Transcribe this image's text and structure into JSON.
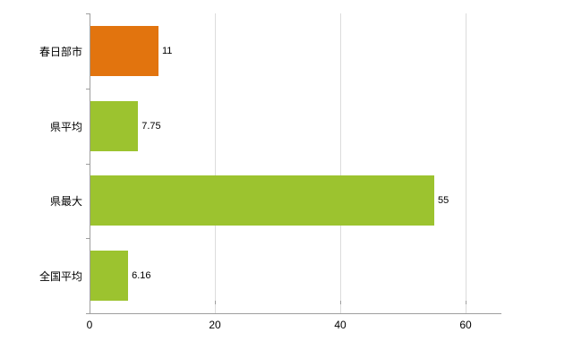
{
  "chart_data": {
    "type": "bar",
    "orientation": "horizontal",
    "title": "",
    "xlabel": "",
    "ylabel": "",
    "categories": [
      "春日部市",
      "県平均",
      "県最大",
      "全国平均"
    ],
    "values": [
      11,
      7.75,
      55,
      6.16
    ],
    "value_labels": [
      "11",
      "7.75",
      "55",
      "6.16"
    ],
    "bar_colors": [
      "#e2740e",
      "#9cc32f",
      "#9cc32f",
      "#9cc32f"
    ],
    "x_ticks": [
      0,
      20,
      40,
      60
    ],
    "x_tick_labels": [
      "0",
      "20",
      "40",
      "60"
    ],
    "xlim": [
      0,
      65
    ],
    "grid": "vertical-only",
    "legend": "none",
    "colors": {
      "background": "#ffffff",
      "axis": "#9e9e9e",
      "gridline": "#dcdcdc",
      "text": "#000000",
      "orange_series": "#e2740e",
      "green_series": "#9cc32f"
    }
  }
}
